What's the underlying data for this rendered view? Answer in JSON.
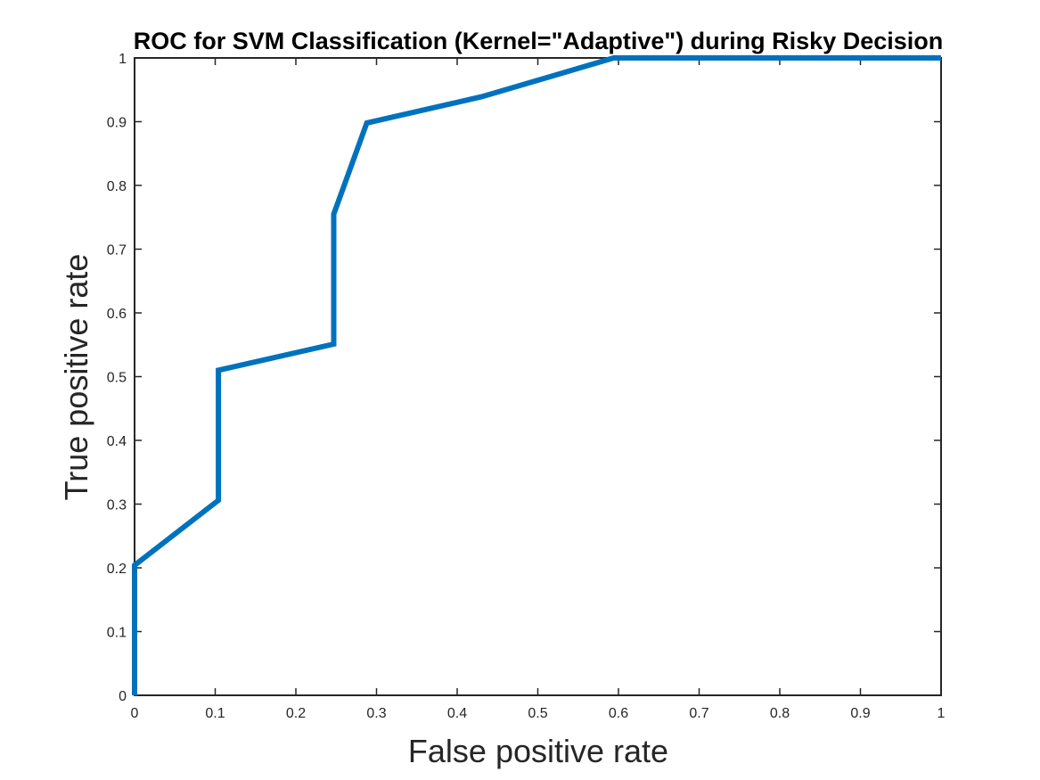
{
  "chart_data": {
    "type": "line",
    "title": "ROC for SVM Classification (Kernel=\"Adaptive\") during Risky Decision",
    "xlabel": "False positive rate",
    "ylabel": "True positive rate",
    "xlim": [
      0,
      1
    ],
    "ylim": [
      0,
      1
    ],
    "x_ticks": [
      "0",
      "0.1",
      "0.2",
      "0.3",
      "0.4",
      "0.5",
      "0.6",
      "0.7",
      "0.8",
      "0.9",
      "1"
    ],
    "y_ticks": [
      "0",
      "0.1",
      "0.2",
      "0.3",
      "0.4",
      "0.5",
      "0.6",
      "0.7",
      "0.8",
      "0.9",
      "1"
    ],
    "grid": false,
    "series": [
      {
        "x": [
          0,
          0,
          0.104,
          0.104,
          0.247,
          0.247,
          0.288,
          0.43,
          0.594,
          1.0
        ],
        "y": [
          0,
          0.204,
          0.306,
          0.51,
          0.551,
          0.755,
          0.898,
          0.939,
          1.0,
          1.0
        ],
        "color": "#0072BD"
      }
    ]
  }
}
